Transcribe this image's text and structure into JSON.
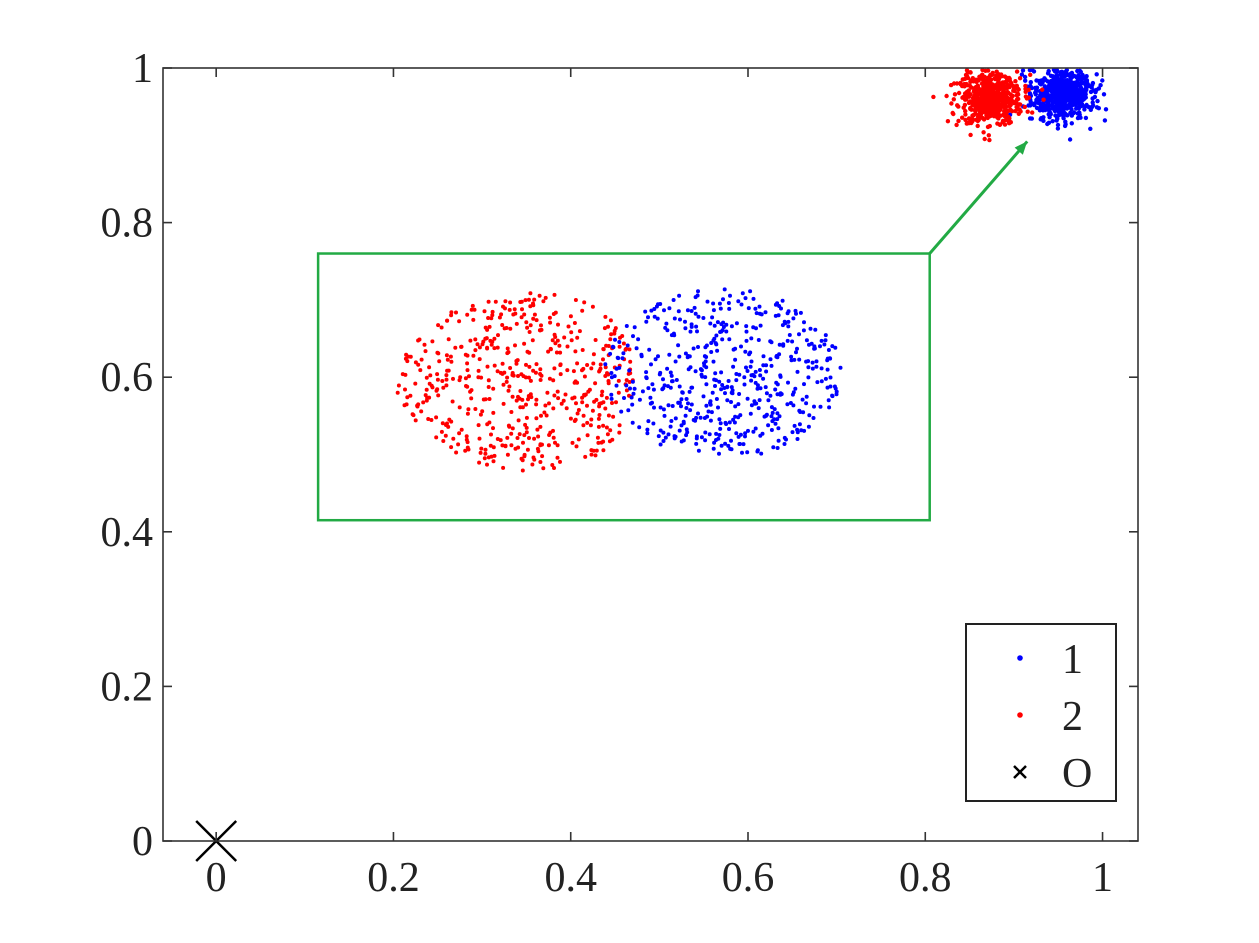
{
  "chart_data": {
    "type": "scatter",
    "title": "",
    "xlabel": "",
    "ylabel": "",
    "xlim": [
      -0.06,
      1.04
    ],
    "ylim": [
      0,
      1
    ],
    "x_ticks": [
      0,
      0.2,
      0.4,
      0.6,
      0.8,
      1
    ],
    "x_tick_labels": [
      "0",
      "0.2",
      "0.4",
      "0.6",
      "0.8",
      "1"
    ],
    "y_ticks": [
      0,
      0.2,
      0.4,
      0.6,
      0.8,
      1
    ],
    "y_tick_labels": [
      "0",
      "0.2",
      "0.4",
      "0.6",
      "0.8",
      "1"
    ],
    "grid": false,
    "legend_position": "bottom-right",
    "series": [
      {
        "name": "1",
        "color": "#0000ff",
        "marker": "dot",
        "cluster": {
          "center": [
            0.955,
            0.965
          ],
          "spread": [
            0.035,
            0.03
          ],
          "count": 600
        }
      },
      {
        "name": "2",
        "color": "#ff0000",
        "marker": "dot",
        "cluster": {
          "center": [
            0.875,
            0.96
          ],
          "spread": [
            0.035,
            0.03
          ],
          "count": 600
        }
      },
      {
        "name": "O",
        "color": "#000000",
        "marker": "x",
        "points": [
          [
            0,
            0
          ]
        ]
      }
    ],
    "inset": {
      "frame_color": "#22aa44",
      "frame_x": [
        0.115,
        0.805
      ],
      "frame_y": [
        0.415,
        0.76
      ],
      "arrow_from": [
        0.805,
        0.76
      ],
      "arrow_to": [
        0.915,
        0.905
      ]
    }
  }
}
